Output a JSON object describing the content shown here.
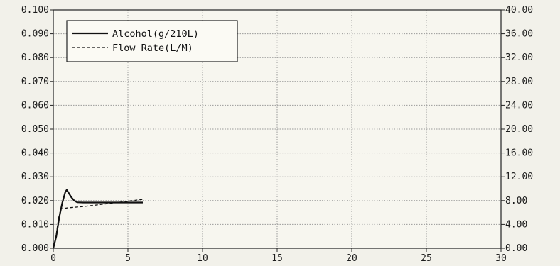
{
  "chart_data": {
    "type": "line",
    "title": "",
    "xlabel": "",
    "ylabel": "",
    "y2label": "",
    "xlim": [
      0,
      30
    ],
    "ylim": [
      0,
      0.1
    ],
    "y2lim": [
      0,
      40
    ],
    "grid": true,
    "legend_position": "top-left",
    "x_ticks": [
      "0",
      "5",
      "10",
      "15",
      "20",
      "25",
      "30"
    ],
    "y_ticks": [
      "0.000",
      "0.010",
      "0.020",
      "0.030",
      "0.040",
      "0.050",
      "0.060",
      "0.070",
      "0.080",
      "0.090",
      "0.100"
    ],
    "y2_ticks": [
      "0.00",
      "4.00",
      "8.00",
      "12.00",
      "16.00",
      "20.00",
      "24.00",
      "28.00",
      "32.00",
      "36.00",
      "40.00"
    ],
    "series": [
      {
        "name": "Alcohol(g/210L)",
        "axis": "left",
        "style": "solid",
        "x": [
          0.0,
          0.2,
          0.4,
          0.6,
          0.8,
          0.9,
          1.0,
          1.2,
          1.4,
          1.6,
          2.0,
          3.0,
          4.0,
          5.0,
          6.0
        ],
        "y": [
          0.0,
          0.005,
          0.013,
          0.019,
          0.0235,
          0.0245,
          0.0235,
          0.0215,
          0.02,
          0.0193,
          0.0192,
          0.0192,
          0.0192,
          0.0192,
          0.0192
        ]
      },
      {
        "name": "Flow Rate(L/M)",
        "axis": "right",
        "style": "dashed",
        "x": [
          0.0,
          0.15,
          0.35,
          0.5,
          1.0,
          2.0,
          3.0,
          4.0,
          5.0,
          6.0
        ],
        "y": [
          0.0,
          1.5,
          5.0,
          6.6,
          6.8,
          7.0,
          7.3,
          7.6,
          7.9,
          8.2
        ]
      }
    ]
  }
}
